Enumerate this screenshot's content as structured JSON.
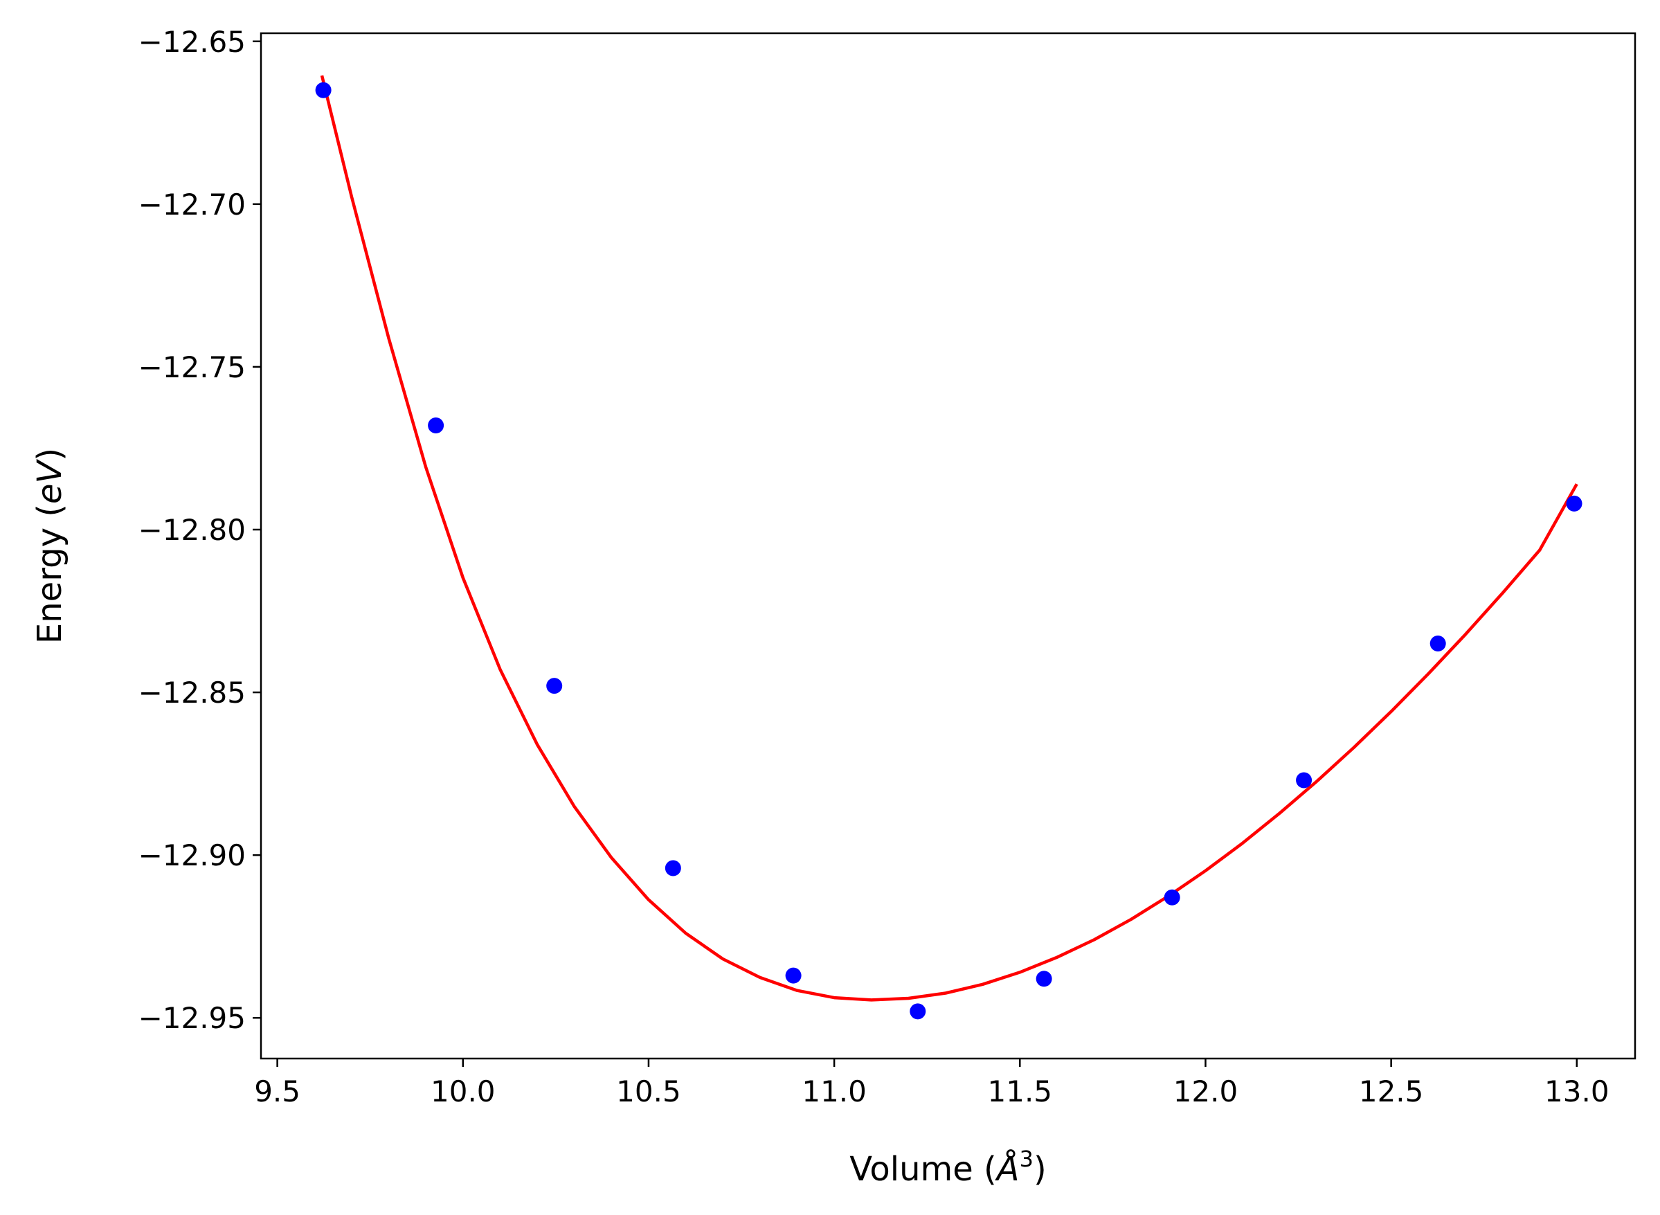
{
  "chart_data": {
    "type": "scatter",
    "xlabel": "Volume (Å³)",
    "xlabel_parts": {
      "prefix": "Volume (",
      "italic": "Å",
      "sup": "3",
      "suffix": ")"
    },
    "ylabel": "Energy (eV)",
    "ylabel_parts": {
      "prefix": "Energy (",
      "italic": "eV",
      "suffix": ")"
    },
    "xlim": [
      9.456,
      13.157
    ],
    "ylim": [
      -12.9625,
      -12.6475
    ],
    "xticks": [
      9.5,
      10.0,
      10.5,
      11.0,
      11.5,
      12.0,
      12.5,
      13.0
    ],
    "xtick_labels": [
      "9.5",
      "10.0",
      "10.5",
      "11.0",
      "11.5",
      "12.0",
      "12.5",
      "13.0"
    ],
    "yticks": [
      -12.65,
      -12.7,
      -12.75,
      -12.8,
      -12.85,
      -12.9,
      -12.95
    ],
    "ytick_labels": [
      "−12.65",
      "−12.70",
      "−12.75",
      "−12.80",
      "−12.85",
      "−12.90",
      "−12.95"
    ],
    "grid": false,
    "legend": "none",
    "series": [
      {
        "type": "scatter",
        "color": "#0000ff",
        "x": [
          9.624,
          9.927,
          10.246,
          10.566,
          10.89,
          11.225,
          11.565,
          11.91,
          12.265,
          12.626,
          12.993
        ],
        "y": [
          -12.665,
          -12.768,
          -12.848,
          -12.904,
          -12.937,
          -12.948,
          -12.938,
          -12.913,
          -12.877,
          -12.835,
          -12.792
        ]
      },
      {
        "type": "line",
        "color": "#ff0000",
        "x": [
          9.62,
          9.7,
          9.8,
          9.9,
          10.0,
          10.1,
          10.2,
          10.3,
          10.4,
          10.5,
          10.6,
          10.7,
          10.8,
          10.9,
          11.0,
          11.1,
          11.2,
          11.3,
          11.4,
          11.5,
          11.6,
          11.7,
          11.8,
          11.9,
          12.0,
          12.1,
          12.2,
          12.3,
          12.4,
          12.5,
          12.6,
          12.7,
          12.8,
          12.9,
          13.0
        ],
        "y": [
          -12.6605,
          -12.6977,
          -12.7412,
          -12.7808,
          -12.8148,
          -12.8429,
          -12.866,
          -12.8851,
          -12.9008,
          -12.9137,
          -12.924,
          -12.9319,
          -12.9376,
          -12.9416,
          -12.9438,
          -12.9445,
          -12.944,
          -12.9424,
          -12.9397,
          -12.936,
          -12.9314,
          -12.926,
          -12.9197,
          -12.9126,
          -12.9048,
          -12.8963,
          -12.8871,
          -12.8773,
          -12.8669,
          -12.8559,
          -12.8443,
          -12.8322,
          -12.8195,
          -12.8063,
          -12.786
        ]
      }
    ]
  }
}
